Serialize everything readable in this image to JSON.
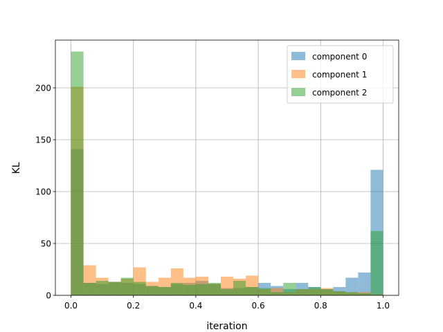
{
  "chart_data": {
    "type": "histogram",
    "xlabel": "iteration",
    "ylabel": "KL",
    "xlim": [
      -0.05,
      1.05
    ],
    "ylim": [
      0,
      246
    ],
    "xticks": [
      0.0,
      0.2,
      0.4,
      0.6,
      0.8,
      1.0
    ],
    "xtick_labels": [
      "0.0",
      "0.2",
      "0.4",
      "0.6",
      "0.8",
      "1.0"
    ],
    "yticks": [
      0,
      50,
      100,
      150,
      200
    ],
    "ytick_labels": [
      "0",
      "50",
      "100",
      "150",
      "200"
    ],
    "grid": true,
    "legend_position": "top-right",
    "bin_edges": [
      0.0,
      0.04,
      0.08,
      0.12,
      0.16,
      0.2,
      0.24,
      0.28,
      0.32,
      0.36,
      0.4,
      0.44,
      0.48,
      0.52,
      0.56,
      0.6,
      0.64,
      0.68,
      0.72,
      0.76,
      0.8,
      0.84,
      0.88,
      0.92,
      0.96,
      1.0
    ],
    "series": [
      {
        "name": "component 0",
        "color": "#1f77b4",
        "values": [
          141,
          12,
          11,
          13,
          12,
          11,
          9,
          8,
          11,
          12,
          14,
          11,
          7,
          7,
          8,
          12,
          9,
          6,
          12,
          8,
          6,
          8,
          17,
          22,
          121
        ]
      },
      {
        "name": "component 1",
        "color": "#ff7f0e",
        "values": [
          201,
          29,
          17,
          13,
          16,
          27,
          13,
          17,
          26,
          17,
          18,
          11,
          18,
          16,
          19,
          6,
          7,
          3,
          6,
          6,
          7,
          4,
          3,
          3,
          1
        ]
      },
      {
        "name": "component 2",
        "color": "#2ca02c",
        "values": [
          235,
          12,
          14,
          13,
          17,
          13,
          9,
          8,
          12,
          10,
          11,
          12,
          6,
          14,
          8,
          7,
          3,
          12,
          6,
          8,
          6,
          4,
          3,
          2,
          62
        ]
      }
    ]
  }
}
